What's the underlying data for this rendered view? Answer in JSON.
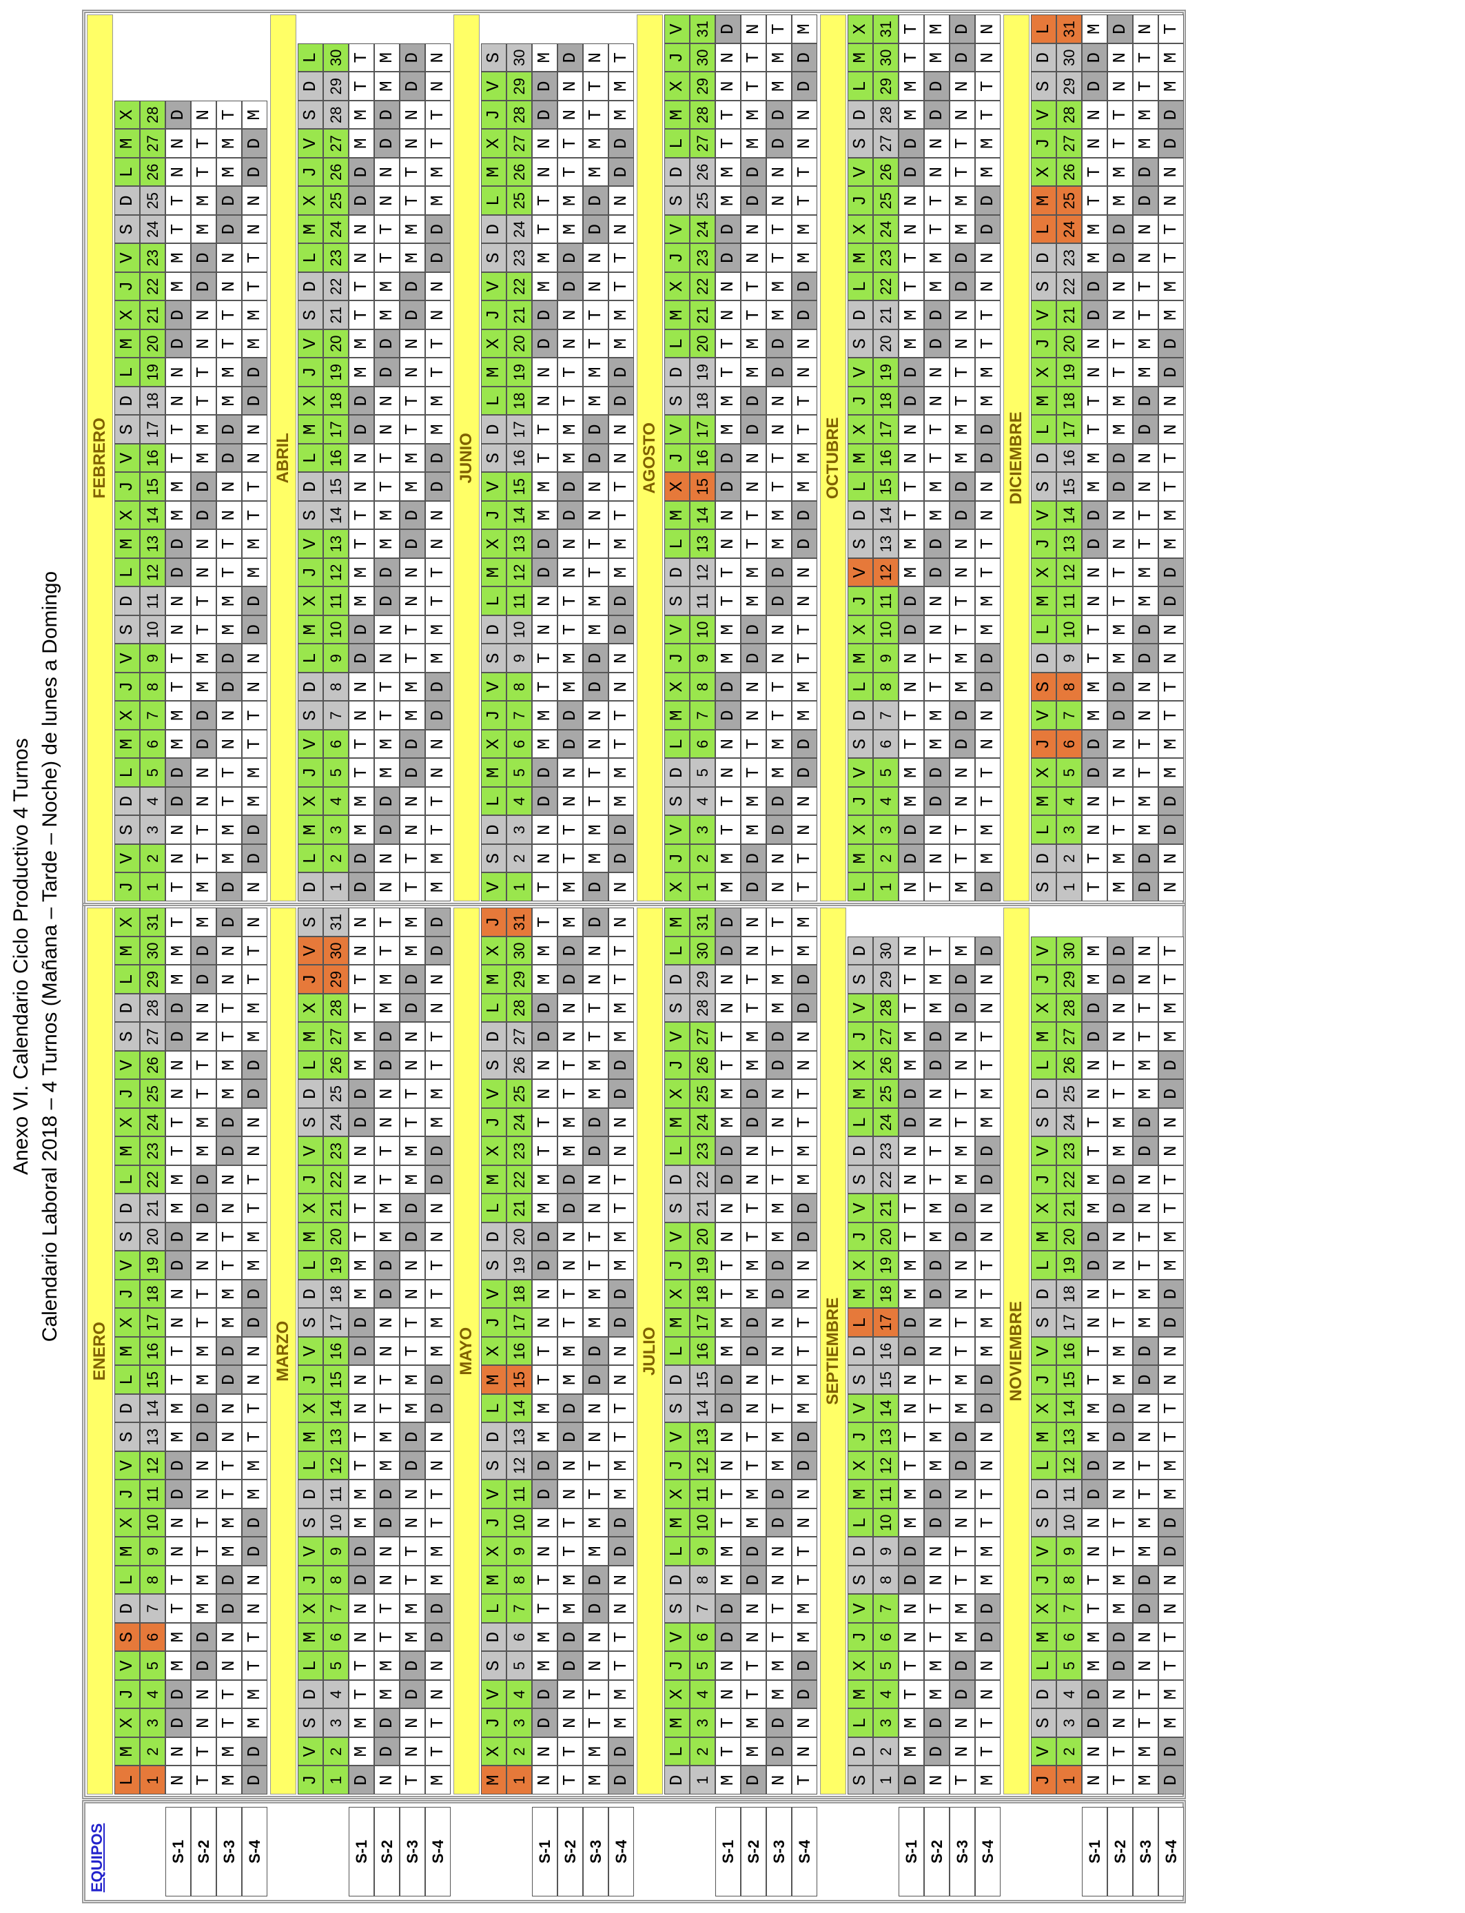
{
  "title": "Anexo VI. Calendario Ciclo Productivo 4 Turnos",
  "subtitle": "Calendario Laboral 2018 – 4 Turnos (Mañana – Tarde – Noche) de lunes a Domingo",
  "equipos_label": "EQUIPOS",
  "teams": [
    "S-1",
    "S-2",
    "S-3",
    "S-4"
  ],
  "months": [
    {
      "name": "ENERO",
      "weekdays": "LMXJVSDLMXJVSDLMXJVSDLMXJVSDLMX",
      "holidays": [
        1,
        6
      ],
      "days": [
        1,
        2,
        3,
        4,
        5,
        6,
        7,
        8,
        9,
        10,
        11,
        12,
        13,
        14,
        15,
        16,
        17,
        18,
        19,
        20,
        21,
        22,
        23,
        24,
        25,
        26,
        27,
        28,
        29,
        30,
        31
      ],
      "shifts": [
        "NNDDMMTTNNDDMMTTNNDDMMTTNNDDMMT",
        "TTNNDDMMTTNNDDMMTTNNDDMMTTNNDDM",
        "MMTTNNDDMMTTNNDDMMTTNNDDMMTTNND",
        "DDMMTTNNDDMMTTNNDDMMTTNNDDMMTTN"
      ]
    },
    {
      "name": "FEBRERO",
      "weekdays": "JVSDLMXJVSDLMXJVSDLMXJVSDLMX",
      "holidays": [],
      "days": [
        1,
        2,
        3,
        4,
        5,
        6,
        7,
        8,
        9,
        10,
        11,
        12,
        13,
        14,
        15,
        16,
        17,
        18,
        19,
        20,
        21,
        22,
        23,
        24,
        25,
        26,
        27,
        28
      ],
      "shifts": [
        "TNNDDMMTTNNDDMMTTNNDDMMTTNND",
        "MTTNNDDMMTTNNDDMMTTNNDDMMTTN",
        "DMMTTNNDDMMTTNNDDMMTTNNDDMMT",
        "NDDMMTTNNDDMMTTNNDDMMTTNNDDM"
      ]
    },
    {
      "name": "MARZO",
      "weekdays": "JVSDLMXJVSDLMXJVSDLMXJVSDLMXJVS",
      "holidays": [
        29,
        30
      ],
      "days": [
        1,
        2,
        3,
        4,
        5,
        6,
        7,
        8,
        9,
        10,
        11,
        12,
        13,
        14,
        15,
        16,
        17,
        18,
        19,
        20,
        21,
        22,
        23,
        24,
        25,
        26,
        27,
        28,
        29,
        30,
        31
      ],
      "shifts": [
        "DMMTTNNDDMMTTNNDDMMTTNNDDMMTTNN",
        "NDDMMTTNNDDMMTTNNDDMMTTNNDDMMTT",
        "TNNDDMMTTNNDDMMTTNNDDMMTTNNDDMM",
        "MTTNNDDMMTTNNDDMMTTNNDDMMTTNNDD"
      ]
    },
    {
      "name": "ABRIL",
      "weekdays": "DLMXJVSDLMXJVSDLMXJVSDLMXJVSDL",
      "holidays": [],
      "days": [
        1,
        2,
        3,
        4,
        5,
        6,
        7,
        8,
        9,
        10,
        11,
        12,
        13,
        14,
        15,
        16,
        17,
        18,
        19,
        20,
        21,
        22,
        23,
        24,
        25,
        26,
        27,
        28,
        29,
        30
      ],
      "shifts": [
        "DDMMTTNNDDMMTTNNDDMMTTNNDDMMTT",
        "NNDDMMTTNNDDMMTTNNDDMMTTNNDDMM",
        "TTNNDDMMTTNNDDMMTTNNDDMMTTNNDD",
        "MMTTNNDDMMTTNNDDMMTTNNDDMMTTNN"
      ]
    },
    {
      "name": "MAYO",
      "weekdays": "MXJVSDLMXJVSDLMXJVSDLMXJVSDLMXJ",
      "holidays": [
        1,
        15,
        31
      ],
      "days": [
        1,
        2,
        3,
        4,
        5,
        6,
        7,
        8,
        9,
        10,
        11,
        12,
        13,
        14,
        15,
        16,
        17,
        18,
        19,
        20,
        21,
        22,
        23,
        24,
        25,
        26,
        27,
        28,
        29,
        30,
        31
      ],
      "shifts": [
        "NNDDMMTTNNDDMMTTNNDDMMTTNNDDMMT",
        "TTNNDDMMTTNNDDMMTTNNDDMMTTNNDDM",
        "MMTTNNDDMMTTNNDDMMTTNNDDMMTTNND",
        "DDMMTTNNDDMMTTNNDDMMTTNNDDMMTTN"
      ]
    },
    {
      "name": "JUNIO",
      "weekdays": "VSDLMXJVSDLMXJVSDLMXJVSDLMXJVS",
      "holidays": [],
      "days": [
        1,
        2,
        3,
        4,
        5,
        6,
        7,
        8,
        9,
        10,
        11,
        12,
        13,
        14,
        15,
        16,
        17,
        18,
        19,
        20,
        21,
        22,
        23,
        24,
        25,
        26,
        27,
        28,
        29,
        30
      ],
      "shifts": [
        "TNNDDMMTTNNDDMMTTNNDDMMTTNNDDM",
        "MTTNNDDMMTTNNDDMMTTNNDDMMTTNND",
        "DMMTTNNDDMMTTNNDDMMTTNNDDMMTTN",
        "NDDMMTTNNDDMMTTNNDDMMTTNNDDMMT"
      ]
    },
    {
      "name": "JULIO",
      "weekdays": "DLMXJVSDLMXJVSDLMXJVSDLMXJVSDLM",
      "holidays": [],
      "days": [
        1,
        2,
        3,
        4,
        5,
        6,
        7,
        8,
        9,
        10,
        11,
        12,
        13,
        14,
        15,
        16,
        17,
        18,
        19,
        20,
        21,
        22,
        23,
        24,
        25,
        26,
        27,
        28,
        29,
        30,
        31
      ],
      "shifts": [
        "MTTNNDDMMTTNNDDMMTTNNDDMMTTNNDD",
        "DMMTTNNDDMMTTNNDDMMTTNNDDMMTTNN",
        "NDDMMTTNNDDMMTTNNDDMMTTNNDDMMTT",
        "TNNDDMMTTNNDDMMTTNNDDMMTTNNDDMM"
      ]
    },
    {
      "name": "AGOSTO",
      "weekdays": "XJVSDLMXJVSDLMXJVSDLMXJVSDLMXJV",
      "holidays": [
        15
      ],
      "days": [
        1,
        2,
        3,
        4,
        5,
        6,
        7,
        8,
        9,
        10,
        11,
        12,
        13,
        14,
        15,
        16,
        17,
        18,
        19,
        20,
        21,
        22,
        23,
        24,
        25,
        26,
        27,
        28,
        29,
        30,
        31
      ],
      "shifts": [
        "MMTTNNDDMMTTNNDDMMTTNNDDMMTTNND",
        "DDMMTTNNDDMMTTNNDDMMTTNNDDMMTTN",
        "NNDDMMTTNNDDMMTTNNDDMMTTNNDDMMT",
        "TTNNDDMMTTNNDDMMTTNNDDMMTTNNDDM"
      ]
    },
    {
      "name": "SEPTIEMBRE",
      "weekdays": "SDLMXJVSDLMXJVSDLMXJVSDLMXJVSD",
      "holidays": [
        17
      ],
      "days": [
        1,
        2,
        3,
        4,
        5,
        6,
        7,
        8,
        9,
        10,
        11,
        12,
        13,
        14,
        15,
        16,
        17,
        18,
        19,
        20,
        21,
        22,
        23,
        24,
        25,
        26,
        27,
        28,
        29,
        30
      ],
      "shifts": [
        "DMMTTNNDDMMTTNNDDMMTTNNDDMMTTN",
        "NDDMMTTNNDDMMTTNNDDMMTTNNDDMMT",
        "TNNDDMMTTNNDDMMTTNNDDMMTTNNDDM",
        "MTTNNDDMMTTNNDDMMTTNNDDMMTTNND"
      ]
    },
    {
      "name": "OCTUBRE",
      "weekdays": "LMXJVSDLMXJVSDLMXJVSDLMXJVSDLMX",
      "holidays": [
        12
      ],
      "days": [
        1,
        2,
        3,
        4,
        5,
        6,
        7,
        8,
        9,
        10,
        11,
        12,
        13,
        14,
        15,
        16,
        17,
        18,
        19,
        20,
        21,
        22,
        23,
        24,
        25,
        26,
        27,
        28,
        29,
        30,
        31
      ],
      "shifts": [
        "NDDMMTTNNDDMMTTNNDDMMTTNNDDMMTT",
        "TNNDDMMTTNNDDMMTTNNDDMMTTNNDDMM",
        "MTTNNDDMMTTNNDDMMTTNNDDMMTTNNDD",
        "DMMTTNNDDMMTTNNDDMMTTNNDDMMTTNN"
      ]
    },
    {
      "name": "NOVIEMBRE",
      "weekdays": "JVSDLMXJVSDLMXJVSDLMXJVSDLMXJV",
      "holidays": [
        1
      ],
      "days": [
        1,
        2,
        3,
        4,
        5,
        6,
        7,
        8,
        9,
        10,
        11,
        12,
        13,
        14,
        15,
        16,
        17,
        18,
        19,
        20,
        21,
        22,
        23,
        24,
        25,
        26,
        27,
        28,
        29,
        30
      ],
      "shifts": [
        "NNDDMMTTNNDDMMTTNNDDMMTTNNDDMM",
        "TTNNDDMMTTNNDDMMTTNNDDMMTTNNDD",
        "MMTTNNDDMMTTNNDDMMTTNNDDMMTTNN",
        "DDMMTTNNDDMMTTNNDDMMTTNNDDMMTT"
      ]
    },
    {
      "name": "DICIEMBRE",
      "weekdays": "SDLMXJVSDLMXJVSDLMXJVSDLMXJVSDL",
      "holidays": [
        6,
        8,
        24,
        25,
        31
      ],
      "days": [
        1,
        2,
        3,
        4,
        5,
        6,
        7,
        8,
        9,
        10,
        11,
        12,
        13,
        14,
        15,
        16,
        17,
        18,
        19,
        20,
        21,
        22,
        23,
        24,
        25,
        26,
        27,
        28,
        29,
        30,
        31
      ],
      "shifts": [
        "TTNNDDMMTTNNDDMMTTNNDDMMTTNNDDM",
        "MMTTNNDDMMTTNNDDMMTTNNDDMMTTNND",
        "DDMMTTNNDDMMTTNNDDMMTTNNDDMMTTN",
        "NNDDMMTTNNDDMMTTNNDDMMTTNNDDMMT"
      ]
    }
  ]
}
